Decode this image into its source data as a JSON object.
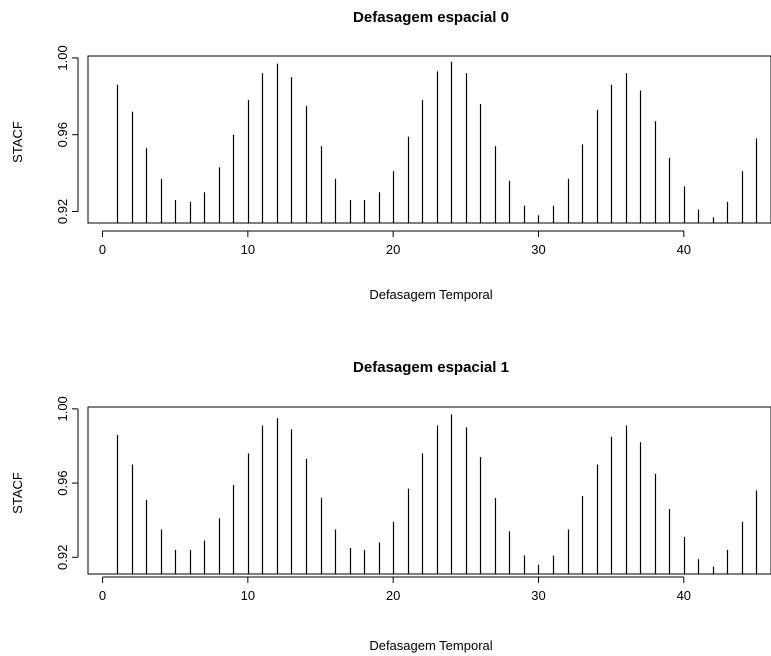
{
  "chart_data": [
    {
      "type": "bar",
      "title": "Defasagem espacial 0",
      "xlabel": "Defasagem Temporal",
      "ylabel": "STACF",
      "xlim": [
        -1,
        46
      ],
      "ylim": [
        0.914,
        1.001
      ],
      "xticks": [
        0,
        10,
        20,
        30,
        40
      ],
      "yticks": [
        0.92,
        0.96,
        1.0
      ],
      "ytick_labels": [
        "0.92",
        "0.96",
        "1.00"
      ],
      "x": [
        1,
        2,
        3,
        4,
        5,
        6,
        7,
        8,
        9,
        10,
        11,
        12,
        13,
        14,
        15,
        16,
        17,
        18,
        19,
        20,
        21,
        22,
        23,
        24,
        25,
        26,
        27,
        28,
        29,
        30,
        31,
        32,
        33,
        34,
        35,
        36,
        37,
        38,
        39,
        40,
        41,
        42,
        43,
        44,
        45
      ],
      "values": [
        0.986,
        0.972,
        0.953,
        0.937,
        0.926,
        0.925,
        0.93,
        0.943,
        0.96,
        0.978,
        0.992,
        0.997,
        0.99,
        0.975,
        0.954,
        0.937,
        0.926,
        0.926,
        0.93,
        0.941,
        0.959,
        0.978,
        0.993,
        0.998,
        0.992,
        0.976,
        0.954,
        0.936,
        0.923,
        0.918,
        0.923,
        0.937,
        0.955,
        0.973,
        0.986,
        0.992,
        0.983,
        0.967,
        0.948,
        0.933,
        0.921,
        0.917,
        0.925,
        0.941,
        0.958
      ]
    },
    {
      "type": "bar",
      "title": "Defasagem espacial 1",
      "xlabel": "Defasagem Temporal",
      "ylabel": "STACF",
      "xlim": [
        -1,
        46
      ],
      "ylim": [
        0.911,
        1.001
      ],
      "xticks": [
        0,
        10,
        20,
        30,
        40
      ],
      "yticks": [
        0.92,
        0.96,
        1.0
      ],
      "ytick_labels": [
        "0.92",
        "0.96",
        "1.00"
      ],
      "x": [
        1,
        2,
        3,
        4,
        5,
        6,
        7,
        8,
        9,
        10,
        11,
        12,
        13,
        14,
        15,
        16,
        17,
        18,
        19,
        20,
        21,
        22,
        23,
        24,
        25,
        26,
        27,
        28,
        29,
        30,
        31,
        32,
        33,
        34,
        35,
        36,
        37,
        38,
        39,
        40,
        41,
        42,
        43,
        44,
        45
      ],
      "values": [
        0.986,
        0.97,
        0.951,
        0.935,
        0.924,
        0.924,
        0.929,
        0.941,
        0.959,
        0.976,
        0.991,
        0.995,
        0.989,
        0.973,
        0.952,
        0.935,
        0.925,
        0.924,
        0.928,
        0.939,
        0.957,
        0.976,
        0.991,
        0.997,
        0.99,
        0.974,
        0.952,
        0.934,
        0.921,
        0.916,
        0.921,
        0.935,
        0.953,
        0.97,
        0.985,
        0.991,
        0.982,
        0.965,
        0.946,
        0.931,
        0.919,
        0.915,
        0.924,
        0.939,
        0.956
      ]
    }
  ]
}
